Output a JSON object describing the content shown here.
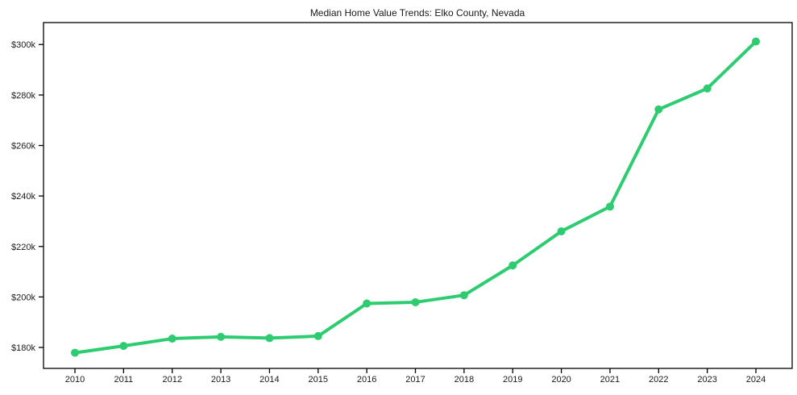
{
  "chart_data": {
    "type": "line",
    "title": "Median Home Value Trends: Elko County, Nevada",
    "x": [
      2010,
      2011,
      2012,
      2013,
      2014,
      2015,
      2016,
      2017,
      2018,
      2019,
      2020,
      2021,
      2022,
      2023,
      2024
    ],
    "x_tick_labels": [
      "2010",
      "2011",
      "2012",
      "2013",
      "2014",
      "2015",
      "2016",
      "2017",
      "2018",
      "2019",
      "2020",
      "2021",
      "2022",
      "2023",
      "2024"
    ],
    "series": [
      {
        "name": "Median Home Value",
        "values": [
          177900,
          180600,
          183500,
          184200,
          183700,
          184500,
          197400,
          197900,
          200700,
          212500,
          226000,
          235800,
          274300,
          282600,
          301200
        ]
      }
    ],
    "xlabel": "",
    "ylabel": "",
    "ylim": [
      171700,
      308700
    ],
    "y_ticks": [
      {
        "value": 180000,
        "label": "$180k"
      },
      {
        "value": 200000,
        "label": "$200k"
      },
      {
        "value": 220000,
        "label": "$220k"
      },
      {
        "value": 240000,
        "label": "$240k"
      },
      {
        "value": 260000,
        "label": "$260k"
      },
      {
        "value": 280000,
        "label": "$280k"
      },
      {
        "value": 300000,
        "label": "$300k"
      }
    ],
    "grid": false,
    "legend": "none",
    "line_color": "#2ecc71",
    "marker_color": "#2ecc71",
    "spine_color": "#000000",
    "background": "#ffffff"
  }
}
